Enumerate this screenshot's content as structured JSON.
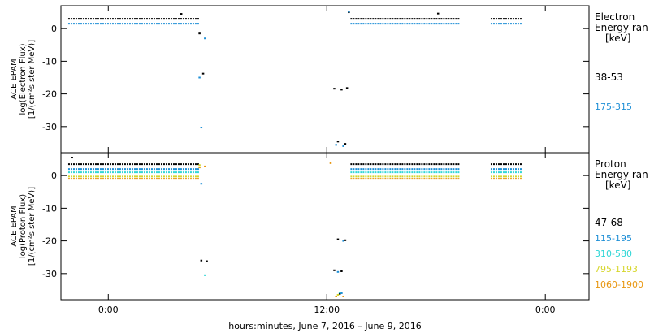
{
  "chart_data": [
    {
      "type": "scatter",
      "ylabel_lines": [
        "ACE EPAM",
        "log(Electron Flux)",
        "[1/(cm²s ster MeV)]"
      ],
      "ylim": [
        -38,
        7
      ],
      "yticks": [
        0,
        -10,
        -20,
        -30
      ],
      "ytick_labels": [
        "0",
        "-10",
        "-20",
        "-30"
      ],
      "legend_title_lines": [
        "Electron",
        "Energy ran",
        "[keV]"
      ],
      "series": [
        {
          "name": "38-53",
          "color": "#000000",
          "segments": [
            {
              "x": [
                -2.2,
                5.0
              ],
              "y": 3.0
            },
            {
              "x": [
                13.3,
                19.3
              ],
              "y": 3.0
            },
            {
              "x": [
                21.0,
                22.7
              ],
              "y": 3.0
            }
          ],
          "points": [
            [
              5.0,
              -1.5
            ],
            [
              5.2,
              -13.8
            ],
            [
              12.4,
              -18.4
            ],
            [
              12.8,
              -18.7
            ],
            [
              13.1,
              -18.2
            ],
            [
              12.6,
              -34.6
            ],
            [
              13.0,
              -35.3
            ],
            [
              13.2,
              5.0
            ],
            [
              18.1,
              4.6
            ],
            [
              4.0,
              4.5
            ]
          ]
        },
        {
          "name": "175-315",
          "color": "#1f8fd6",
          "segments": [
            {
              "x": [
                -2.2,
                5.0
              ],
              "y": 1.5
            },
            {
              "x": [
                13.3,
                19.3
              ],
              "y": 1.5
            },
            {
              "x": [
                21.0,
                22.7
              ],
              "y": 1.5
            }
          ],
          "points": [
            [
              5.0,
              -15.0
            ],
            [
              5.1,
              -30.3
            ],
            [
              12.5,
              -35.6
            ],
            [
              12.9,
              -36.0
            ],
            [
              13.2,
              5.2
            ],
            [
              5.3,
              -3.0
            ]
          ]
        }
      ]
    },
    {
      "type": "scatter",
      "ylabel_lines": [
        "ACE EPAM",
        "log(Proton Flux)",
        "[1/(cm²s ster MeV)]"
      ],
      "ylim": [
        -38,
        7
      ],
      "yticks": [
        0,
        -10,
        -20,
        -30
      ],
      "ytick_labels": [
        "0",
        "-10",
        "-20",
        "-30"
      ],
      "legend_title_lines": [
        "Proton",
        "Energy ran",
        "[keV]"
      ],
      "series": [
        {
          "name": "47-68",
          "color": "#000000",
          "segments": [
            {
              "x": [
                -2.2,
                5.0
              ],
              "y": 3.5
            },
            {
              "x": [
                13.3,
                19.3
              ],
              "y": 3.5
            },
            {
              "x": [
                21.0,
                22.7
              ],
              "y": 3.5
            }
          ],
          "points": [
            [
              5.1,
              -26.0
            ],
            [
              5.4,
              -26.2
            ],
            [
              12.4,
              -29.0
            ],
            [
              12.8,
              -29.3
            ],
            [
              13.0,
              -19.8
            ],
            [
              12.6,
              -19.5
            ],
            [
              12.7,
              -36.2
            ],
            [
              -2.0,
              5.5
            ]
          ]
        },
        {
          "name": "115-195",
          "color": "#1f8fd6",
          "segments": [
            {
              "x": [
                -2.2,
                5.0
              ],
              "y": 2.0
            },
            {
              "x": [
                13.3,
                19.3
              ],
              "y": 2.0
            },
            {
              "x": [
                21.0,
                22.7
              ],
              "y": 2.0
            }
          ],
          "points": [
            [
              5.1,
              -2.5
            ],
            [
              12.6,
              -29.5
            ],
            [
              12.9,
              -20.0
            ],
            [
              12.8,
              -36.0
            ]
          ]
        },
        {
          "name": "310-580",
          "color": "#2fd6d6",
          "segments": [
            {
              "x": [
                -2.2,
                5.0
              ],
              "y": 1.0
            },
            {
              "x": [
                13.3,
                19.3
              ],
              "y": 1.0
            },
            {
              "x": [
                21.0,
                22.7
              ],
              "y": 1.0
            }
          ],
          "points": [
            [
              5.3,
              -30.5
            ],
            [
              12.7,
              -35.8
            ]
          ]
        },
        {
          "name": "795-1193",
          "color": "#d6d62a",
          "segments": [
            {
              "x": [
                -2.2,
                5.0
              ],
              "y": -0.3
            },
            {
              "x": [
                13.3,
                19.3
              ],
              "y": -0.3
            },
            {
              "x": [
                21.0,
                22.7
              ],
              "y": -0.3
            }
          ],
          "points": [
            [
              12.6,
              -36.5
            ],
            [
              5.0,
              3.2
            ]
          ]
        },
        {
          "name": "1060-1900",
          "color": "#e8960f",
          "segments": [
            {
              "x": [
                -2.2,
                5.0
              ],
              "y": -1.0
            },
            {
              "x": [
                13.3,
                19.3
              ],
              "y": -1.0
            },
            {
              "x": [
                21.0,
                22.7
              ],
              "y": -1.0
            }
          ],
          "points": [
            [
              5.0,
              2.5
            ],
            [
              5.3,
              2.8
            ],
            [
              12.5,
              -37.0
            ],
            [
              12.9,
              -37.0
            ],
            [
              12.2,
              3.8
            ]
          ]
        }
      ]
    }
  ],
  "x_axis": {
    "xlim": [
      -2.6,
      26.4
    ],
    "ticks": [
      0,
      12,
      24
    ],
    "tick_labels": [
      "0:00",
      "12:00",
      "0:00"
    ],
    "label": "hours:minutes,  June  7, 2016 – June  9, 2016"
  }
}
